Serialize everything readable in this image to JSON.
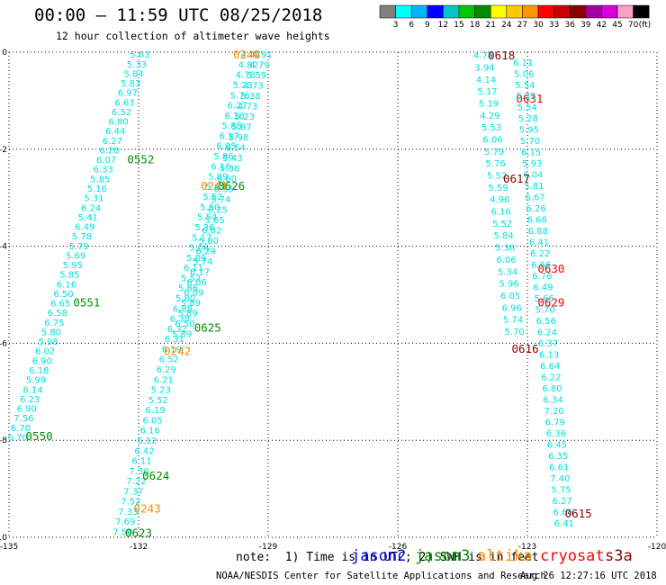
{
  "header": {
    "title": "00:00 – 11:59 UTC 08/25/2018",
    "subtitle": "12 hour collection of altimeter wave heights"
  },
  "colorbar": {
    "unit_label": "(ft)",
    "ticks": [
      "3",
      "6",
      "9",
      "12",
      "15",
      "18",
      "21",
      "24",
      "27",
      "30",
      "33",
      "36",
      "39",
      "42",
      "45",
      "70"
    ],
    "colors": [
      "#808080",
      "#00ffff",
      "#00b4ff",
      "#0000ff",
      "#00c8c8",
      "#00c800",
      "#008c00",
      "#ffff00",
      "#ffc800",
      "#ff9600",
      "#ff0000",
      "#c80000",
      "#8c0000",
      "#a000a0",
      "#d800d8",
      "#ff9ec8",
      "#000000"
    ]
  },
  "footer": {
    "note": "note:  1) Time is in UTC; 2) SWH is in feet",
    "credit": "NOAA/NESDIS Center for Satellite Applications and Research",
    "generated": "Aug 26 12:27:16 UTC 2018"
  },
  "satellites": [
    {
      "name": "jason2",
      "color": "#0000ff"
    },
    {
      "name": "jason3",
      "color": "#009000"
    },
    {
      "name": "altika",
      "color": "#ff8c00"
    },
    {
      "name": "cryosat",
      "color": "#ff0000"
    },
    {
      "name": "s3a",
      "color": "#8c0000"
    }
  ],
  "chart_data": {
    "type": "scatter",
    "title": "",
    "xlabel": "",
    "ylabel": "",
    "xlim": [
      -135,
      -120
    ],
    "ylim": [
      -10,
      0
    ],
    "x_ticks": [
      -135,
      -132,
      -129,
      -126,
      -123,
      -120
    ],
    "x_tick_labels": [
      "-135",
      "-132",
      "-129",
      "-126",
      "-123",
      "-120"
    ],
    "y_ticks": [
      0,
      -2,
      -4,
      -6,
      -8,
      -10
    ],
    "y_tick_labels": [
      "0",
      "-2",
      "-4",
      "-6",
      "-8",
      "-10"
    ],
    "grid": true,
    "point_color": "#00e0e0",
    "tracks": [
      {
        "satellite": "jason3",
        "start": [
          -131.97,
          -0.04
        ],
        "end": [
          -134.8,
          -7.93
        ],
        "values": [
          "5.63",
          "5.33",
          "5.84",
          "5.83",
          "6.97",
          "6.63",
          "6.52",
          "6.80",
          "6.44",
          "6.27",
          "6.28",
          "6.07",
          "6.33",
          "5.85",
          "5.16",
          "5.31",
          "6.24",
          "5.41",
          "6.49",
          "5.78",
          "5.79",
          "5.69",
          "5.95",
          "5.85",
          "6.16",
          "6.50",
          "6.65",
          "6.58",
          "6.75",
          "5.80",
          "5.98",
          "6.02",
          "6.90",
          "6.18",
          "5.99",
          "6.14",
          "6.23",
          "6.90",
          "7.56",
          "6.70",
          "6.70"
        ],
        "times": [
          {
            "label": "0552",
            "x": -131.95,
            "y": -2.2
          },
          {
            "label": "0551",
            "x": -133.2,
            "y": -5.15
          },
          {
            "label": "0550",
            "x": -134.3,
            "y": -7.9
          }
        ]
      },
      {
        "satellite": "jason3",
        "start": [
          -129.4,
          -0.04
        ],
        "end": [
          -132.37,
          -9.88
        ],
        "values": [
          "4.47",
          "4.82",
          "4.78",
          "5.23",
          "5.76",
          "6.27",
          "6.16",
          "5.88",
          "6.17",
          "6.05",
          "5.86",
          "6.16",
          "5.89",
          "5.85",
          "5.52",
          "5.50",
          "5.54",
          "5.36",
          "5.17",
          "5.06",
          "5.89",
          "6.11",
          "5.52",
          "5.86",
          "5.80",
          "6.88",
          "6.38",
          "6.32",
          "6.31",
          "6.19",
          "6.52",
          "6.29",
          "6.21",
          "5.23",
          "5.52",
          "6.19",
          "6.05",
          "6.16",
          "6.12",
          "6.42",
          "6.11",
          "7.30",
          "7.22",
          "7.37",
          "7.52",
          "7.33",
          "7.69",
          "7.50"
        ],
        "times": [
          {
            "label": "0626",
            "x": -129.85,
            "y": -2.75
          },
          {
            "label": "0625",
            "x": -130.4,
            "y": -5.67
          },
          {
            "label": "0624",
            "x": -131.6,
            "y": -8.72
          },
          {
            "label": "0623",
            "x": -132.0,
            "y": -9.9
          }
        ]
      },
      {
        "satellite": "altika",
        "start": [
          -129.13,
          -0.04
        ],
        "end": [
          -131.0,
          -5.8
        ],
        "values": [
          "4.91",
          "4.79",
          "5.59",
          "4.73",
          "5.38",
          "4.73",
          "5.23",
          "5.87",
          "5.98",
          "6.54",
          "5.43",
          "5.38",
          "6.80",
          "6.35",
          "5.74",
          "6.25",
          "5.65",
          "6.02",
          "5.80",
          "6.29",
          "5.74",
          "6.17",
          "6.06",
          "6.09",
          "5.89",
          "5.89",
          "6.50",
          "5.89"
        ],
        "times": [
          {
            "label": "0240",
            "x": -129.5,
            "y": -0.04
          },
          {
            "label": "0241",
            "x": -130.25,
            "y": -2.75
          },
          {
            "label": "0242",
            "x": -131.1,
            "y": -6.15
          },
          {
            "label": "0243",
            "x": -131.8,
            "y": -9.4
          }
        ]
      },
      {
        "satellite": "cryosat",
        "start": [
          -124.02,
          -0.06
        ],
        "end": [
          -123.3,
          -5.75
        ],
        "values": [
          "4.74",
          "3.94",
          "4.14",
          "5.17",
          "5.19",
          "4.29",
          "5.53",
          "6.06",
          "5.79",
          "5.76",
          "5.52",
          "5.59",
          "4.96",
          "6.16",
          "5.52",
          "5.84",
          "5.36",
          "6.06",
          "5.34",
          "5.96",
          "6.05",
          "6.96",
          "5.74",
          "5.70"
        ],
        "times": [
          {
            "label": "0631",
            "x": -122.95,
            "y": -0.95
          },
          {
            "label": "0630",
            "x": -122.45,
            "y": -4.45
          },
          {
            "label": "0629",
            "x": -122.45,
            "y": -5.15
          }
        ]
      },
      {
        "satellite": "s3a",
        "start": [
          -123.1,
          -0.2
        ],
        "end": [
          -122.15,
          -9.7
        ],
        "values": [
          "6.11",
          "5.06",
          "5.54",
          "5.32",
          "5.54",
          "5.28",
          "5.95",
          "5.70",
          "6.15",
          "5.93",
          "6.04",
          "5.81",
          "6.67",
          "6.26",
          "6.68",
          "6.88",
          "6.41",
          "6.22",
          "6.66",
          "6.76",
          "6.49",
          "5.66",
          "5.70",
          "6.56",
          "6.24",
          "6.37",
          "6.13",
          "6.64",
          "6.22",
          "6.80",
          "6.34",
          "7.20",
          "6.79",
          "6.36",
          "6.45",
          "6.35",
          "6.61",
          "7.40",
          "5.75",
          "6.27",
          "6.66",
          "6.41"
        ],
        "times": [
          {
            "label": "0618",
            "x": -123.6,
            "y": -0.06
          },
          {
            "label": "0617",
            "x": -123.25,
            "y": -2.6
          },
          {
            "label": "0616",
            "x": -123.05,
            "y": -6.1
          },
          {
            "label": "0615",
            "x": -121.82,
            "y": -9.5
          }
        ]
      }
    ]
  }
}
